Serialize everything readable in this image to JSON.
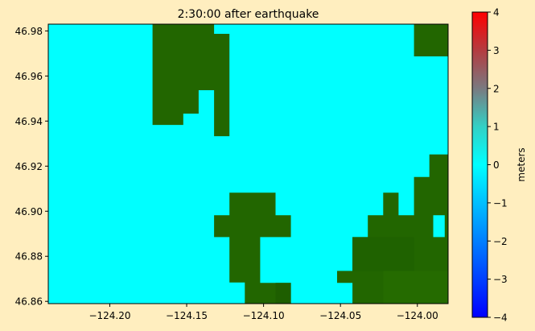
{
  "figure": {
    "background": "#ffeebf"
  },
  "chart_data": {
    "type": "heatmap",
    "title": "2:30:00 after earthquake",
    "xlim": [
      -124.24,
      -123.98
    ],
    "ylim": [
      46.859,
      46.983
    ],
    "x_ticks": [
      -124.2,
      -124.15,
      -124.1,
      -124.05,
      -124.0
    ],
    "x_tick_labels": [
      "−124.20",
      "−124.15",
      "−124.10",
      "−124.05",
      "−124.00"
    ],
    "y_ticks": [
      46.86,
      46.88,
      46.9,
      46.92,
      46.94,
      46.96,
      46.98
    ],
    "y_tick_labels": [
      "46.86",
      "46.88",
      "46.90",
      "46.92",
      "46.94",
      "46.96",
      "46.98"
    ],
    "water_color": "#00ffff",
    "land_color": "#226600",
    "water_value_m": 0,
    "land_regions": [
      {
        "shade": "#226600",
        "polygon": [
          [
            -124.1722,
            46.9835
          ],
          [
            -124.1322,
            46.9835
          ],
          [
            -124.1322,
            46.9787
          ],
          [
            -124.1222,
            46.9787
          ],
          [
            -124.1222,
            46.9333
          ],
          [
            -124.1322,
            46.9333
          ],
          [
            -124.1322,
            46.9537
          ],
          [
            -124.1422,
            46.9537
          ],
          [
            -124.1422,
            46.9433
          ],
          [
            -124.1522,
            46.9433
          ],
          [
            -124.1522,
            46.9383
          ],
          [
            -124.1722,
            46.9383
          ],
          [
            -124.1722,
            46.9335
          ],
          [
            -124.1722,
            46.9335
          ]
        ]
      },
      {
        "shade": "#226600",
        "polygon": [
          [
            -124.1122,
            46.9082
          ],
          [
            -124.0922,
            46.9082
          ],
          [
            -124.0922,
            46.8982
          ],
          [
            -124.0822,
            46.8982
          ],
          [
            -124.0822,
            46.8885
          ],
          [
            -124.1022,
            46.8885
          ],
          [
            -124.1022,
            46.8682
          ],
          [
            -124.0822,
            46.8682
          ],
          [
            -124.0822,
            46.8585
          ],
          [
            -124.1122,
            46.8585
          ],
          [
            -124.1122,
            46.8682
          ],
          [
            -124.1122,
            46.8684
          ],
          [
            -124.1222,
            46.8684
          ],
          [
            -124.1222,
            46.8885
          ],
          [
            -124.1322,
            46.8885
          ],
          [
            -124.1322,
            46.8982
          ],
          [
            -124.1222,
            46.8982
          ],
          [
            -124.1222,
            46.9082
          ]
        ]
      },
      {
        "shade": "#226600",
        "polygon": [
          [
            -124.0022,
            46.9835
          ],
          [
            -123.9797,
            46.9835
          ],
          [
            -123.9797,
            46.9687
          ],
          [
            -124.0022,
            46.9687
          ]
        ]
      },
      {
        "shade": "#226600",
        "polygon": [
          [
            -123.9922,
            46.9252
          ],
          [
            -123.9797,
            46.9252
          ],
          [
            -123.9797,
            46.8585
          ],
          [
            -124.0522,
            46.8585
          ],
          [
            -124.0522,
            46.8735
          ],
          [
            -124.0422,
            46.8735
          ],
          [
            -124.0422,
            46.8885
          ],
          [
            -124.0322,
            46.8885
          ],
          [
            -124.0322,
            46.8982
          ],
          [
            -124.0222,
            46.8982
          ],
          [
            -124.0222,
            46.9082
          ],
          [
            -124.0122,
            46.9082
          ],
          [
            -124.0122,
            46.8982
          ],
          [
            -124.0022,
            46.8982
          ],
          [
            -124.0022,
            46.9152
          ],
          [
            -123.9922,
            46.9152
          ]
        ]
      }
    ],
    "land_holes": [
      {
        "polygon": [
          [
            -123.9897,
            46.8982
          ],
          [
            -123.9822,
            46.8982
          ],
          [
            -123.9822,
            46.8885
          ],
          [
            -123.9897,
            46.8885
          ]
        ]
      },
      {
        "polygon": [
          [
            -124.0522,
            46.8682
          ],
          [
            -124.0422,
            46.8682
          ],
          [
            -124.0422,
            46.8585
          ],
          [
            -124.0522,
            46.8585
          ]
        ]
      }
    ],
    "shade_patches": [
      {
        "color": "#1f6200",
        "polygon": [
          [
            -124.0422,
            46.8885
          ],
          [
            -124.0022,
            46.8885
          ],
          [
            -124.0022,
            46.8735
          ],
          [
            -124.0422,
            46.8735
          ]
        ]
      },
      {
        "color": "#256b00",
        "polygon": [
          [
            -124.0222,
            46.8735
          ],
          [
            -123.9797,
            46.8735
          ],
          [
            -123.9797,
            46.8585
          ],
          [
            -124.0222,
            46.8585
          ]
        ]
      },
      {
        "color": "#1e5e00",
        "polygon": [
          [
            -124.0922,
            46.8682
          ],
          [
            -124.0822,
            46.8682
          ],
          [
            -124.0822,
            46.8585
          ],
          [
            -124.0922,
            46.8585
          ]
        ]
      }
    ],
    "colorbar": {
      "label": "meters",
      "min": -4,
      "max": 4,
      "ticks": [
        4,
        3,
        2,
        1,
        0,
        -1,
        -2,
        -3,
        -4
      ],
      "tick_labels": [
        "4",
        "3",
        "2",
        "1",
        "0",
        "−1",
        "−2",
        "−3",
        "−4"
      ],
      "colormap": [
        {
          "value": -4,
          "color": "#0000ff"
        },
        {
          "value": 0,
          "color": "#00ffff"
        },
        {
          "value": 1,
          "color": "#33d0c4"
        },
        {
          "value": 2,
          "color": "#7a7a80"
        },
        {
          "value": 3,
          "color": "#b43c40"
        },
        {
          "value": 4,
          "color": "#ff0000"
        }
      ]
    }
  }
}
